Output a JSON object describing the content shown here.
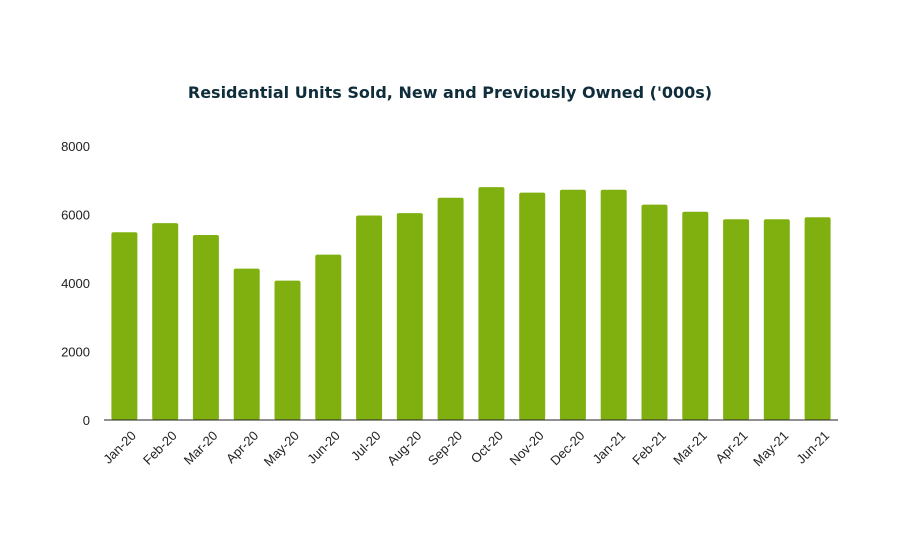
{
  "chart_data": {
    "type": "bar",
    "title": "Residential Units Sold, New and Previously Owned ('000s)",
    "xlabel": "",
    "ylabel": "",
    "categories": [
      "Jan-20",
      "Feb-20",
      "Mar-20",
      "Apr-20",
      "May-20",
      "Jun-20",
      "Jul-20",
      "Aug-20",
      "Sep-20",
      "Oct-20",
      "Nov-20",
      "Dec-20",
      "Jan-21",
      "Feb-21",
      "Mar-21",
      "Apr-21",
      "May-21",
      "Jun-21"
    ],
    "values": [
      5480,
      5750,
      5400,
      4420,
      4070,
      4830,
      5970,
      6040,
      6490,
      6800,
      6640,
      6720,
      6720,
      6290,
      6080,
      5860,
      5860,
      5920
    ],
    "ylim": [
      0,
      8000
    ],
    "yticks": [
      0,
      2000,
      4000,
      6000,
      8000
    ],
    "grid": false,
    "legend": "none",
    "bar_color": "#80b010",
    "title_color": "#0f2d3a"
  }
}
